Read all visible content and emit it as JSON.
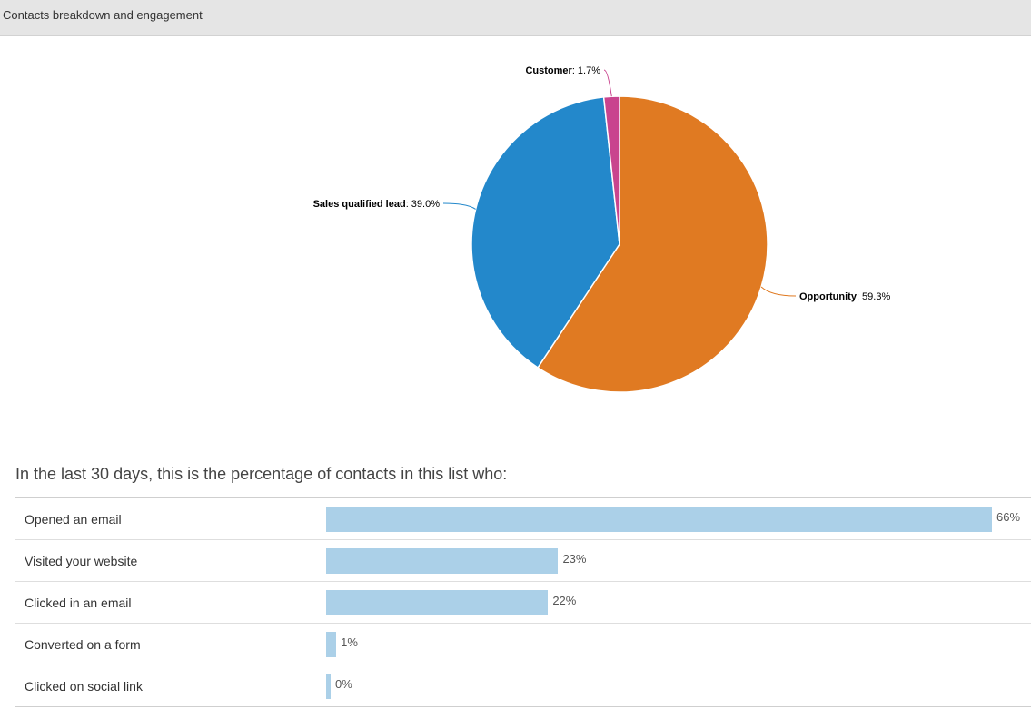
{
  "panel": {
    "title": "Contacts breakdown and engagement"
  },
  "chart_data": [
    {
      "type": "pie",
      "slices": [
        {
          "label": "Opportunity",
          "value": 59.3,
          "value_text": "59.3%",
          "color": "#e07a22"
        },
        {
          "label": "Sales qualified lead",
          "value": 39.0,
          "value_text": "39.0%",
          "color": "#2388cb"
        },
        {
          "label": "Customer",
          "value": 1.7,
          "value_text": "1.7%",
          "color": "#c9448e"
        }
      ]
    },
    {
      "type": "bar",
      "title": "In the last 30 days, this is the percentage of contacts in this list who:",
      "orientation": "horizontal",
      "bar_color": "#abd0e8",
      "categories": [
        "Opened an email",
        "Visited your website",
        "Clicked in an email",
        "Converted on a form",
        "Clicked on social link"
      ],
      "values": [
        66,
        23,
        22,
        1,
        0
      ],
      "value_labels": [
        "66%",
        "23%",
        "22%",
        "1%",
        "0%"
      ],
      "xlim": [
        0,
        66
      ]
    }
  ]
}
